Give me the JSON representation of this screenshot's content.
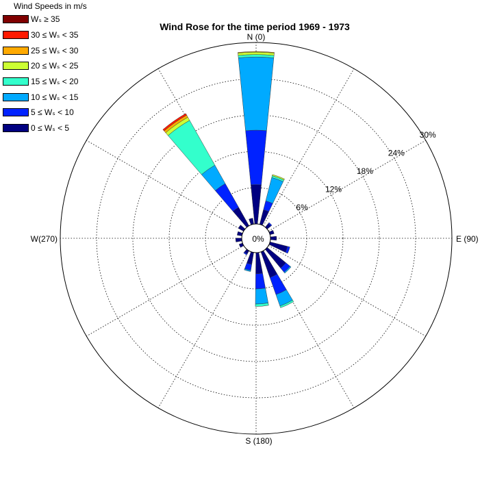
{
  "chart_data": {
    "type": "wind_rose",
    "title": "Wind Rose for the time period 1969 - 1973",
    "legend": {
      "title": "Wind Speeds in m/s",
      "placement": "top-left",
      "bins": [
        {
          "label": "Wₛ ≥ 35",
          "color": "#800000"
        },
        {
          "label": "30 ≤ Wₛ < 35",
          "color": "#ff1a00"
        },
        {
          "label": "25 ≤ Wₛ < 30",
          "color": "#ffaa00"
        },
        {
          "label": "20 ≤ Wₛ < 25",
          "color": "#ccff33"
        },
        {
          "label": "15 ≤ Wₛ < 20",
          "color": "#33ffcc"
        },
        {
          "label": "10 ≤ Wₛ < 15",
          "color": "#00aaff"
        },
        {
          "label": "5 ≤ Wₛ < 10",
          "color": "#0022ff"
        },
        {
          "label": "0 ≤ Wₛ < 5",
          "color": "#000080"
        }
      ]
    },
    "direction_labels": [
      {
        "text": "N (0)",
        "deg": 0
      },
      {
        "text": "E (90)",
        "deg": 90
      },
      {
        "text": "S (180)",
        "deg": 180
      },
      {
        "text": "W(270)",
        "deg": 270
      }
    ],
    "radial_axis": {
      "unit": "%",
      "ticks": [
        6,
        12,
        18,
        24,
        30
      ],
      "tick_labels": [
        "6%",
        "12%",
        "18%",
        "24%",
        "30%"
      ],
      "center_label": "0%",
      "max": 30,
      "grid": true
    },
    "sectors": [
      {
        "direction": 0,
        "cum": [
          6.5,
          15.5,
          27.6,
          28.0,
          28.4,
          28.5
        ]
      },
      {
        "direction": 20,
        "cum": [
          2.5,
          4.0,
          8.0,
          8.3,
          8.5
        ]
      },
      {
        "direction": 45,
        "cum": [
          0.8,
          1.0
        ]
      },
      {
        "direction": 70,
        "cum": [
          0.7
        ]
      },
      {
        "direction": 90,
        "cum": [
          1.0
        ]
      },
      {
        "direction": 110,
        "cum": [
          3.0,
          3.4
        ]
      },
      {
        "direction": 135,
        "cum": [
          4.0,
          4.9,
          5.1
        ]
      },
      {
        "direction": 155,
        "cum": [
          4.5,
          7.5,
          9.5,
          9.8
        ]
      },
      {
        "direction": 175,
        "cum": [
          3.5,
          6.0,
          8.5,
          8.9
        ]
      },
      {
        "direction": 195,
        "cum": [
          2.0,
          3.0,
          3.2
        ]
      },
      {
        "direction": 215,
        "cum": [
          0.6,
          0.8
        ]
      },
      {
        "direction": 245,
        "cum": [
          0.6
        ]
      },
      {
        "direction": 265,
        "cum": [
          1.0
        ]
      },
      {
        "direction": 285,
        "cum": [
          0.8
        ]
      },
      {
        "direction": 305,
        "cum": [
          1.0
        ]
      },
      {
        "direction": 325,
        "cum": [
          3.5,
          8.0,
          11.5,
          20.0,
          20.6,
          21.0,
          21.3
        ]
      },
      {
        "direction": 345,
        "cum": [
          1.0
        ]
      }
    ]
  }
}
